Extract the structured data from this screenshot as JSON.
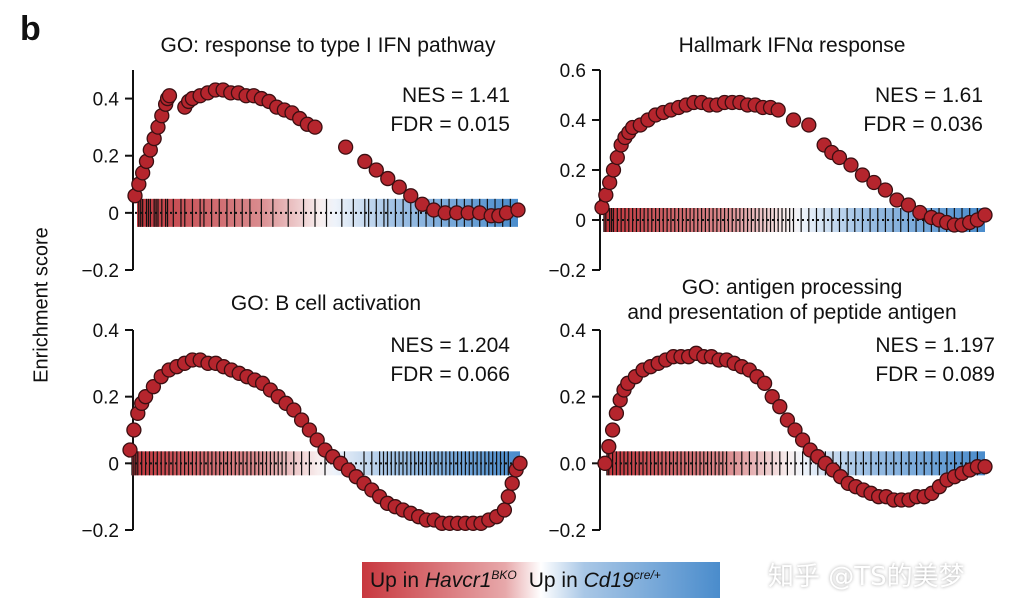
{
  "figure": {
    "panel_letter": "b",
    "ylabel": "Enrichment score",
    "legend": {
      "left_prefix": "Up in ",
      "left_gene": "Havcr1",
      "left_sup": "BKO",
      "right_prefix": "Up in ",
      "right_gene": "Cd19",
      "right_sup": "cre/+",
      "colors": {
        "red": "#c8383f",
        "blue": "#4a8ccc"
      }
    },
    "watermark": "知乎 @TS的美梦",
    "dot_color": "#b5252d"
  },
  "chart_data": [
    {
      "type": "line",
      "title": "GO: response to type I IFN pathway",
      "xlabel": "",
      "ylabel": "Enrichment score",
      "ylim": [
        -0.2,
        0.5
      ],
      "yticks": [
        "0.4",
        "0.2",
        "0",
        "−0.2"
      ],
      "ytick_values": [
        0.4,
        0.2,
        0,
        -0.2
      ],
      "nes": "NES = 1.41",
      "fdr": "FDR = 0.015",
      "x": [
        0,
        0.01,
        0.02,
        0.03,
        0.04,
        0.05,
        0.06,
        0.07,
        0.08,
        0.085,
        0.09,
        0.13,
        0.14,
        0.15,
        0.17,
        0.19,
        0.21,
        0.23,
        0.25,
        0.27,
        0.29,
        0.31,
        0.33,
        0.35,
        0.37,
        0.39,
        0.41,
        0.43,
        0.45,
        0.47,
        0.55,
        0.6,
        0.63,
        0.66,
        0.69,
        0.72,
        0.75,
        0.78,
        0.81,
        0.84,
        0.87,
        0.9,
        0.93,
        0.95,
        0.97,
        1.0
      ],
      "y": [
        0.06,
        0.1,
        0.14,
        0.18,
        0.22,
        0.26,
        0.3,
        0.34,
        0.38,
        0.4,
        0.41,
        0.37,
        0.39,
        0.4,
        0.41,
        0.42,
        0.43,
        0.43,
        0.42,
        0.42,
        0.41,
        0.41,
        0.4,
        0.39,
        0.37,
        0.36,
        0.35,
        0.33,
        0.31,
        0.3,
        0.23,
        0.18,
        0.15,
        0.12,
        0.09,
        0.06,
        0.03,
        0.01,
        0.0,
        0.0,
        0.0,
        0.0,
        -0.01,
        -0.01,
        0.0,
        0.01
      ],
      "hits": [
        0.01,
        0.015,
        0.02,
        0.03,
        0.035,
        0.04,
        0.05,
        0.055,
        0.06,
        0.07,
        0.08,
        0.085,
        0.1,
        0.12,
        0.13,
        0.15,
        0.17,
        0.18,
        0.2,
        0.22,
        0.24,
        0.26,
        0.28,
        0.3,
        0.33,
        0.36,
        0.4,
        0.44,
        0.47,
        0.5,
        0.54,
        0.57,
        0.6,
        0.61,
        0.63,
        0.65,
        0.66,
        0.68,
        0.7,
        0.72,
        0.74,
        0.76,
        0.78,
        0.8,
        0.82,
        0.84,
        0.86,
        0.88,
        0.9,
        0.92,
        0.94,
        0.96,
        0.98
      ]
    },
    {
      "type": "line",
      "title": "Hallmark IFNα response",
      "xlabel": "",
      "ylabel": "",
      "ylim": [
        -0.2,
        0.6
      ],
      "yticks": [
        "0.6",
        "0.4",
        "0.2",
        "0",
        "−0.2"
      ],
      "ytick_values": [
        0.6,
        0.4,
        0.2,
        0,
        -0.2
      ],
      "nes": "NES = 1.61",
      "fdr": "FDR = 0.036",
      "x": [
        0,
        0.01,
        0.02,
        0.03,
        0.04,
        0.05,
        0.06,
        0.07,
        0.08,
        0.1,
        0.12,
        0.14,
        0.16,
        0.18,
        0.2,
        0.22,
        0.24,
        0.26,
        0.28,
        0.3,
        0.32,
        0.34,
        0.36,
        0.38,
        0.4,
        0.42,
        0.44,
        0.46,
        0.5,
        0.54,
        0.58,
        0.6,
        0.62,
        0.65,
        0.68,
        0.71,
        0.74,
        0.77,
        0.8,
        0.83,
        0.86,
        0.88,
        0.9,
        0.92,
        0.94,
        0.96,
        0.98,
        1.0
      ],
      "y": [
        0.05,
        0.1,
        0.15,
        0.2,
        0.25,
        0.3,
        0.33,
        0.35,
        0.37,
        0.38,
        0.4,
        0.42,
        0.43,
        0.44,
        0.45,
        0.46,
        0.47,
        0.47,
        0.46,
        0.46,
        0.47,
        0.47,
        0.47,
        0.46,
        0.46,
        0.45,
        0.45,
        0.44,
        0.4,
        0.38,
        0.3,
        0.27,
        0.25,
        0.22,
        0.18,
        0.15,
        0.12,
        0.08,
        0.06,
        0.03,
        0.01,
        0.0,
        -0.01,
        -0.02,
        -0.02,
        -0.01,
        0.0,
        0.02
      ],
      "hits": [
        0.005,
        0.01,
        0.02,
        0.025,
        0.03,
        0.04,
        0.05,
        0.06,
        0.07,
        0.08,
        0.09,
        0.1,
        0.11,
        0.12,
        0.13,
        0.14,
        0.15,
        0.16,
        0.17,
        0.18,
        0.19,
        0.2,
        0.21,
        0.22,
        0.23,
        0.24,
        0.25,
        0.26,
        0.27,
        0.28,
        0.29,
        0.3,
        0.31,
        0.32,
        0.33,
        0.34,
        0.35,
        0.36,
        0.37,
        0.38,
        0.39,
        0.4,
        0.41,
        0.42,
        0.43,
        0.44,
        0.45,
        0.46,
        0.47,
        0.48,
        0.49,
        0.5,
        0.52,
        0.54,
        0.56,
        0.58,
        0.6,
        0.62,
        0.64,
        0.66,
        0.68,
        0.7,
        0.72,
        0.74,
        0.76,
        0.78,
        0.8,
        0.82,
        0.84,
        0.86,
        0.88,
        0.9,
        0.92,
        0.94,
        0.96,
        0.98
      ]
    },
    {
      "type": "line",
      "title": "GO: B cell activation",
      "xlabel": "",
      "ylabel": "",
      "ylim": [
        -0.2,
        0.4
      ],
      "yticks": [
        "0.4",
        "0.2",
        "0",
        "−0.2"
      ],
      "ytick_values": [
        0.4,
        0.2,
        0,
        -0.2
      ],
      "nes": "NES = 1.204",
      "fdr": "FDR = 0.066",
      "x": [
        0,
        0.01,
        0.02,
        0.03,
        0.04,
        0.06,
        0.08,
        0.1,
        0.12,
        0.14,
        0.16,
        0.18,
        0.2,
        0.22,
        0.24,
        0.26,
        0.28,
        0.3,
        0.32,
        0.34,
        0.36,
        0.38,
        0.4,
        0.42,
        0.44,
        0.46,
        0.48,
        0.5,
        0.52,
        0.54,
        0.56,
        0.58,
        0.6,
        0.62,
        0.64,
        0.66,
        0.68,
        0.7,
        0.72,
        0.74,
        0.76,
        0.78,
        0.8,
        0.82,
        0.84,
        0.86,
        0.88,
        0.9,
        0.92,
        0.94,
        0.96,
        0.97,
        0.98,
        0.99,
        1.0
      ],
      "y": [
        0.04,
        0.1,
        0.15,
        0.18,
        0.2,
        0.23,
        0.26,
        0.28,
        0.29,
        0.3,
        0.31,
        0.31,
        0.3,
        0.3,
        0.29,
        0.28,
        0.27,
        0.26,
        0.25,
        0.24,
        0.22,
        0.2,
        0.18,
        0.16,
        0.13,
        0.1,
        0.07,
        0.04,
        0.02,
        0.0,
        -0.02,
        -0.04,
        -0.06,
        -0.08,
        -0.1,
        -0.12,
        -0.13,
        -0.14,
        -0.15,
        -0.16,
        -0.17,
        -0.17,
        -0.18,
        -0.18,
        -0.18,
        -0.18,
        -0.18,
        -0.18,
        -0.17,
        -0.16,
        -0.14,
        -0.1,
        -0.06,
        -0.02,
        0.0
      ],
      "hits": [
        0.005,
        0.01,
        0.015,
        0.02,
        0.03,
        0.04,
        0.05,
        0.06,
        0.07,
        0.08,
        0.09,
        0.1,
        0.11,
        0.12,
        0.13,
        0.14,
        0.15,
        0.16,
        0.17,
        0.18,
        0.19,
        0.2,
        0.21,
        0.22,
        0.23,
        0.24,
        0.25,
        0.26,
        0.27,
        0.28,
        0.29,
        0.3,
        0.31,
        0.32,
        0.33,
        0.34,
        0.35,
        0.36,
        0.37,
        0.38,
        0.39,
        0.4,
        0.42,
        0.44,
        0.46,
        0.5,
        0.55,
        0.6,
        0.62,
        0.64,
        0.65,
        0.66,
        0.67,
        0.68,
        0.69,
        0.7,
        0.71,
        0.72,
        0.73,
        0.74,
        0.75,
        0.76,
        0.77,
        0.78,
        0.79,
        0.8,
        0.81,
        0.82,
        0.83,
        0.84,
        0.85,
        0.86,
        0.87,
        0.88,
        0.89,
        0.9,
        0.91,
        0.92,
        0.93,
        0.94,
        0.95,
        0.96,
        0.97
      ]
    },
    {
      "type": "line",
      "title": "GO: antigen processing and presentation of peptide antigen",
      "title_lines": [
        "GO: antigen processing",
        "and presentation of peptide antigen"
      ],
      "xlabel": "",
      "ylabel": "",
      "ylim": [
        -0.2,
        0.4
      ],
      "yticks": [
        "0.4",
        "0.2",
        "0.0",
        "−0.2"
      ],
      "ytick_values": [
        0.4,
        0.2,
        0,
        -0.2
      ],
      "nes": "NES = 1.197",
      "fdr": "FDR = 0.089",
      "x": [
        0,
        0.01,
        0.02,
        0.03,
        0.04,
        0.05,
        0.06,
        0.08,
        0.1,
        0.12,
        0.14,
        0.16,
        0.18,
        0.2,
        0.22,
        0.24,
        0.26,
        0.28,
        0.3,
        0.32,
        0.34,
        0.36,
        0.38,
        0.4,
        0.42,
        0.44,
        0.46,
        0.48,
        0.5,
        0.52,
        0.54,
        0.56,
        0.58,
        0.6,
        0.62,
        0.64,
        0.66,
        0.68,
        0.7,
        0.72,
        0.74,
        0.76,
        0.78,
        0.8,
        0.82,
        0.84,
        0.86,
        0.88,
        0.9,
        0.92,
        0.94,
        0.96,
        0.98,
        1.0
      ],
      "y": [
        0.0,
        0.05,
        0.1,
        0.15,
        0.19,
        0.22,
        0.24,
        0.26,
        0.28,
        0.29,
        0.3,
        0.31,
        0.32,
        0.32,
        0.32,
        0.33,
        0.32,
        0.32,
        0.31,
        0.31,
        0.3,
        0.29,
        0.28,
        0.26,
        0.24,
        0.2,
        0.17,
        0.13,
        0.1,
        0.07,
        0.04,
        0.02,
        0.0,
        -0.02,
        -0.04,
        -0.06,
        -0.07,
        -0.08,
        -0.09,
        -0.1,
        -0.1,
        -0.11,
        -0.11,
        -0.11,
        -0.1,
        -0.1,
        -0.09,
        -0.07,
        -0.05,
        -0.04,
        -0.03,
        -0.02,
        -0.01,
        -0.01
      ],
      "hits": [
        0.005,
        0.01,
        0.02,
        0.03,
        0.04,
        0.05,
        0.06,
        0.07,
        0.08,
        0.09,
        0.1,
        0.11,
        0.12,
        0.13,
        0.14,
        0.15,
        0.16,
        0.17,
        0.18,
        0.19,
        0.2,
        0.21,
        0.22,
        0.23,
        0.24,
        0.25,
        0.26,
        0.27,
        0.28,
        0.29,
        0.3,
        0.31,
        0.32,
        0.34,
        0.36,
        0.38,
        0.4,
        0.42,
        0.44,
        0.46,
        0.48,
        0.5,
        0.52,
        0.54,
        0.56,
        0.58,
        0.6,
        0.62,
        0.64,
        0.66,
        0.68,
        0.7,
        0.72,
        0.74,
        0.76,
        0.78,
        0.8,
        0.82,
        0.84,
        0.86,
        0.88,
        0.9,
        0.92,
        0.94,
        0.96,
        0.98
      ]
    }
  ]
}
